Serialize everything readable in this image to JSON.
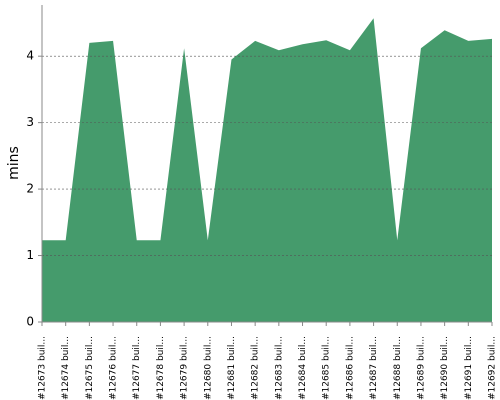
{
  "chart_data": {
    "type": "area",
    "y_label": "mins",
    "categories": [
      "#12673 buil...",
      "#12674 buil...",
      "#12675 buil...",
      "#12676 buil...",
      "#12677 buil...",
      "#12678 buil...",
      "#12679 buil...",
      "#12680 buil...",
      "#12681 buil...",
      "#12682 buil...",
      "#12683 buil...",
      "#12684 buil...",
      "#12685 buil...",
      "#12686 buil...",
      "#12687 buil...",
      "#12688 buil...",
      "#12689 buil...",
      "#12690 buil...",
      "#12691 buil...",
      "#12692 buil..."
    ],
    "values": [
      1.23,
      1.23,
      4.2,
      4.23,
      1.23,
      1.23,
      4.12,
      1.23,
      3.95,
      4.23,
      4.09,
      4.18,
      4.24,
      4.09,
      4.57,
      1.23,
      4.12,
      4.39,
      4.23,
      4.26
    ],
    "color": "#459b6c",
    "ylim": [
      0,
      4.77
    ],
    "yticks": [
      0,
      1,
      2,
      3,
      4
    ],
    "grid": true
  }
}
